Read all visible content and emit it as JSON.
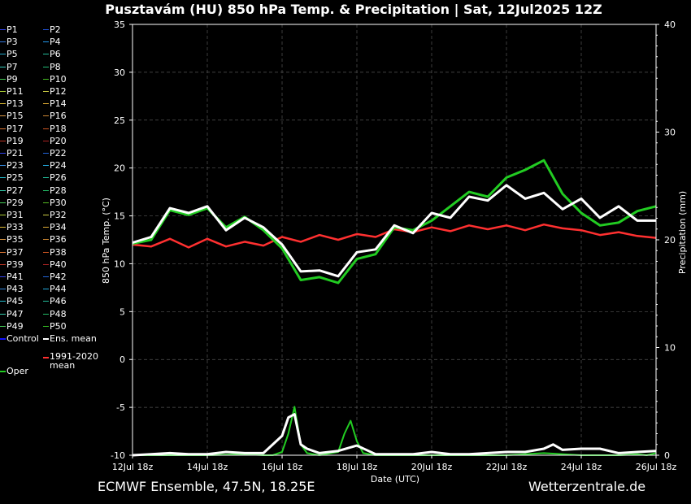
{
  "title": "Pusztavám  (HU)  850 hPa Temp. & Precipitation | Sat, 12Jul2025 12Z",
  "footer": {
    "left": "ECMWF Ensemble, 47.5N, 18.25E",
    "right": "Wetterzentrale.de"
  },
  "colors": {
    "background": "#000000",
    "grid": "#555555",
    "oper": "#22cc22",
    "control": "#1010ff",
    "ens_mean": "#ffffff",
    "climate": "#ff3030"
  },
  "legend": [
    {
      "label": "P1",
      "color": "#3344ee"
    },
    {
      "label": "P2",
      "color": "#2255dd"
    },
    {
      "label": "P3",
      "color": "#3377dd"
    },
    {
      "label": "P4",
      "color": "#2299ee"
    },
    {
      "label": "P5",
      "color": "#22aacc"
    },
    {
      "label": "P6",
      "color": "#22bb99"
    },
    {
      "label": "P7",
      "color": "#33ccbb"
    },
    {
      "label": "P8",
      "color": "#22bb77"
    },
    {
      "label": "P9",
      "color": "#44cc55"
    },
    {
      "label": "P10",
      "color": "#44bb22"
    },
    {
      "label": "P11",
      "color": "#aacc33"
    },
    {
      "label": "P12",
      "color": "#cccc44"
    },
    {
      "label": "P13",
      "color": "#ddbb33"
    },
    {
      "label": "P14",
      "color": "#ddaa33"
    },
    {
      "label": "P15",
      "color": "#dd9944"
    },
    {
      "label": "P16",
      "color": "#cc8833"
    },
    {
      "label": "P17",
      "color": "#dd7733"
    },
    {
      "label": "P18",
      "color": "#cc5522"
    },
    {
      "label": "P19",
      "color": "#bb3322"
    },
    {
      "label": "P20",
      "color": "#aa2222"
    },
    {
      "label": "P21",
      "color": "#3344ee"
    },
    {
      "label": "P22",
      "color": "#2266dd"
    },
    {
      "label": "P23",
      "color": "#3388dd"
    },
    {
      "label": "P24",
      "color": "#22aadd"
    },
    {
      "label": "P25",
      "color": "#22bbcc"
    },
    {
      "label": "P26",
      "color": "#22bb99"
    },
    {
      "label": "P27",
      "color": "#33ccaa"
    },
    {
      "label": "P28",
      "color": "#22bb66"
    },
    {
      "label": "P29",
      "color": "#44cc55"
    },
    {
      "label": "P30",
      "color": "#55bb22"
    },
    {
      "label": "P31",
      "color": "#aacc33"
    },
    {
      "label": "P32",
      "color": "#cccc44"
    },
    {
      "label": "P33",
      "color": "#ddbb33"
    },
    {
      "label": "P34",
      "color": "#ddaa33"
    },
    {
      "label": "P35",
      "color": "#dd9944"
    },
    {
      "label": "P36",
      "color": "#cc8833"
    },
    {
      "label": "P37",
      "color": "#dd7733"
    },
    {
      "label": "P38",
      "color": "#cc5522"
    },
    {
      "label": "P39",
      "color": "#bb3322"
    },
    {
      "label": "P40",
      "color": "#aa2222"
    },
    {
      "label": "P41",
      "color": "#3344ee"
    },
    {
      "label": "P42",
      "color": "#2266dd"
    },
    {
      "label": "P43",
      "color": "#3388dd"
    },
    {
      "label": "P44",
      "color": "#22aadd"
    },
    {
      "label": "P45",
      "color": "#22bbcc"
    },
    {
      "label": "P46",
      "color": "#22bb99"
    },
    {
      "label": "P47",
      "color": "#33ccaa"
    },
    {
      "label": "P48",
      "color": "#22bb66"
    },
    {
      "label": "P49",
      "color": "#44cc55"
    },
    {
      "label": "P50",
      "color": "#33bb22"
    },
    {
      "label": "Control",
      "color": "#1010ff"
    },
    {
      "label": "Ens. mean",
      "color": "#ffffff"
    },
    {
      "label": "1991-2020 mean",
      "color": "#ff3030"
    },
    {
      "label": "Oper",
      "color": "#22cc22"
    }
  ],
  "chart_data": {
    "type": "line",
    "xlabel": "Date (UTC)",
    "ylabel": "850 hPa Temp. (°C)",
    "y2label": "Precipitation (mm)",
    "ylim": [
      -10,
      35
    ],
    "y2lim": [
      0,
      40
    ],
    "yticks": [
      -10,
      -5,
      0,
      5,
      10,
      15,
      20,
      25,
      30,
      35
    ],
    "y2ticks": [
      0,
      10,
      20,
      30,
      40
    ],
    "xlim": [
      0,
      336
    ],
    "xticks": [
      {
        "x": 0,
        "label": "12Jul 18z"
      },
      {
        "x": 48,
        "label": "14Jul 18z"
      },
      {
        "x": 96,
        "label": "16Jul 18z"
      },
      {
        "x": 144,
        "label": "18Jul 18z"
      },
      {
        "x": 192,
        "label": "20Jul 18z"
      },
      {
        "x": 240,
        "label": "22Jul 18z"
      },
      {
        "x": 288,
        "label": "24Jul 18z"
      },
      {
        "x": 336,
        "label": "26Jul 18z"
      }
    ],
    "grid": true,
    "series": [
      {
        "name": "Ens. mean",
        "axis": "temp",
        "x": [
          0,
          12,
          24,
          36,
          48,
          60,
          72,
          84,
          96,
          108,
          120,
          132,
          144,
          156,
          168,
          180,
          192,
          204,
          216,
          228,
          240,
          252,
          264,
          276,
          288,
          300,
          312,
          324,
          336
        ],
        "values": [
          12.2,
          12.8,
          15.8,
          15.3,
          16.0,
          13.5,
          14.8,
          13.8,
          12.0,
          9.2,
          9.3,
          8.7,
          11.2,
          11.5,
          14.0,
          13.2,
          15.3,
          14.8,
          17.0,
          16.6,
          18.2,
          16.8,
          17.4,
          15.7,
          16.8,
          14.8,
          16.0,
          14.5,
          14.5
        ]
      },
      {
        "name": "1991-2020 mean",
        "axis": "temp",
        "x": [
          0,
          12,
          24,
          36,
          48,
          60,
          72,
          84,
          96,
          108,
          120,
          132,
          144,
          156,
          168,
          180,
          192,
          204,
          216,
          228,
          240,
          252,
          264,
          276,
          288,
          300,
          312,
          324,
          336
        ],
        "values": [
          12.0,
          11.8,
          12.6,
          11.7,
          12.6,
          11.8,
          12.3,
          11.9,
          12.8,
          12.3,
          13.0,
          12.5,
          13.1,
          12.8,
          13.6,
          13.3,
          13.8,
          13.4,
          14.0,
          13.6,
          14.0,
          13.5,
          14.1,
          13.7,
          13.5,
          13.0,
          13.3,
          12.9,
          12.7
        ]
      },
      {
        "name": "Oper",
        "axis": "temp",
        "x": [
          0,
          12,
          24,
          36,
          48,
          60,
          72,
          84,
          96,
          108,
          120,
          132,
          144,
          156,
          168,
          180,
          192,
          204,
          216,
          228,
          240,
          252,
          264,
          276,
          288,
          300,
          312,
          324,
          336
        ],
        "values": [
          12.1,
          12.5,
          15.6,
          15.1,
          15.8,
          13.8,
          14.9,
          13.5,
          11.6,
          8.3,
          8.6,
          8.0,
          10.5,
          11.0,
          13.8,
          13.5,
          14.5,
          16.0,
          17.5,
          17.0,
          19.0,
          19.8,
          20.8,
          17.3,
          15.3,
          14.0,
          14.3,
          15.5,
          16.0
        ]
      },
      {
        "name": "Ens. mean precipitation",
        "axis": "precip",
        "x": [
          0,
          12,
          24,
          36,
          48,
          60,
          72,
          84,
          96,
          100,
          104,
          108,
          112,
          120,
          132,
          144,
          156,
          168,
          180,
          192,
          204,
          216,
          228,
          240,
          252,
          264,
          270,
          276,
          288,
          300,
          312,
          324,
          336
        ],
        "values": [
          0,
          0.1,
          0.2,
          0.1,
          0.1,
          0.3,
          0.2,
          0.2,
          1.8,
          3.5,
          3.8,
          1.0,
          0.6,
          0.2,
          0.4,
          0.9,
          0.1,
          0.1,
          0.1,
          0.3,
          0.1,
          0.1,
          0.2,
          0.3,
          0.3,
          0.6,
          1.0,
          0.5,
          0.6,
          0.6,
          0.2,
          0.3,
          0.4
        ]
      },
      {
        "name": "Oper precipitation",
        "axis": "precip",
        "x": [
          0,
          24,
          48,
          72,
          84,
          90,
          96,
          100,
          104,
          108,
          112,
          120,
          132,
          136,
          140,
          144,
          148,
          156,
          168,
          180,
          192,
          216,
          240,
          264,
          288,
          300,
          312,
          324,
          330,
          336
        ],
        "values": [
          0,
          0,
          0,
          0.1,
          0,
          0,
          0.3,
          2.0,
          4.5,
          1.0,
          0.2,
          0,
          0.3,
          2.0,
          3.2,
          1.3,
          0.2,
          0,
          0,
          0,
          0,
          0,
          0,
          0.2,
          0,
          0,
          0,
          0.1,
          0,
          0.2
        ]
      }
    ]
  }
}
